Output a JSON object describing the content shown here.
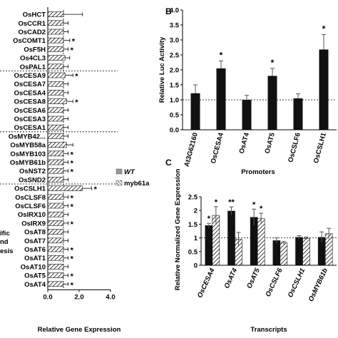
{
  "figure": {
    "background": "#ffffff",
    "bar_color": "#111111"
  },
  "chart_data": [
    {
      "panel": "A",
      "panel_label": "",
      "type": "bar",
      "orientation": "horizontal",
      "xlabel": "Relative Gene Expression",
      "xlim": [
        0,
        4
      ],
      "xticks": [
        "0.0",
        "2.0",
        "4.0"
      ],
      "reference_line": 1.0,
      "legend": {
        "placement": "right",
        "items": [
          "WT",
          "myb61a"
        ]
      },
      "side_labels": [
        "ific",
        "nd",
        "esis"
      ],
      "group_separators_after": [
        "OsPAL1",
        "OsCESA1",
        "OsSND2"
      ],
      "categories": [
        "OsHCT",
        "OsCCR1",
        "OsCAD2",
        "OsCOMT1",
        "OsF5H",
        "Os4CL3",
        "OsPAL1",
        "OsCESA9",
        "OsCESA7",
        "OsCESA4",
        "OsCESA8",
        "OsCESA6",
        "OsCESA3",
        "OsCESA1",
        "OsMYB42...",
        "OsMYB58a",
        "OsMYB103",
        "OsMYB61b",
        "OsNST2",
        "OsSND2",
        "OsCSLH1",
        "OsCLSF8",
        "OsCLSF6",
        "OsIRX10",
        "OsIRX9",
        "OsAT8",
        "OsAT7",
        "OsAT6",
        "OsAT1",
        "OsAT10",
        "OsAT5",
        "OsAT4"
      ],
      "series": [
        {
          "name": "myb61a",
          "pattern": "hatched",
          "values": [
            1.0,
            1.0,
            1.0,
            1.0,
            1.0,
            1.1,
            1.0,
            1.1,
            1.0,
            1.0,
            1.2,
            1.0,
            1.0,
            1.0,
            1.0,
            1.2,
            1.0,
            1.0,
            1.0,
            1.0,
            2.2,
            1.0,
            1.0,
            1.0,
            1.0,
            1.0,
            1.0,
            1.0,
            1.0,
            1.0,
            1.0,
            1.0
          ],
          "errors": [
            1.2,
            0.3,
            0.3,
            0.4,
            0.3,
            0.3,
            0.3,
            0.5,
            0.3,
            0.3,
            0.4,
            0.3,
            0.3,
            0.3,
            0.3,
            0.4,
            0.3,
            0.3,
            0.3,
            0.3,
            0.6,
            0.3,
            0.3,
            0.3,
            0.3,
            0.3,
            0.3,
            0.3,
            0.3,
            0.3,
            0.3,
            0.3
          ]
        }
      ],
      "significance": [
        "",
        "",
        "",
        "*",
        "*",
        "",
        "",
        "*",
        "",
        "",
        "*",
        "",
        "",
        "",
        "",
        "",
        "*",
        "*",
        "*",
        "",
        "*",
        "*",
        "*",
        "",
        "*",
        "",
        "",
        "*",
        "*",
        "",
        "*",
        "*"
      ]
    },
    {
      "panel": "B",
      "panel_label": "B",
      "type": "bar",
      "ylabel": "Relative Luc Activity",
      "xlabel": "Promoters",
      "ylim": [
        0,
        4
      ],
      "yticks": [
        "0.0",
        "0.5",
        "1.0",
        "1.5",
        "2.0",
        "2.5",
        "3.0",
        "3.5",
        "4.0"
      ],
      "reference_line": 1.0,
      "categories": [
        "At3G62160",
        "OsCESA4",
        "OsAT4",
        "OsAT5",
        "OsCSLF6",
        "OsCSLH1"
      ],
      "values": [
        1.22,
        2.05,
        1.0,
        1.8,
        1.05,
        2.68
      ],
      "errors": [
        0.28,
        0.25,
        0.15,
        0.25,
        0.15,
        0.5
      ],
      "significance": [
        "",
        "*",
        "",
        "*",
        "",
        "*"
      ]
    },
    {
      "panel": "C",
      "panel_label": "C",
      "type": "bar",
      "ylabel": "Relative Normalized Gene Expression",
      "xlabel": "Transcripts",
      "ylim": [
        0,
        2.5
      ],
      "yticks": [
        "0",
        "0.5",
        "1",
        "1.5",
        "2",
        "2.5"
      ],
      "reference_line": 1.0,
      "categories": [
        "OsCESA4",
        "OsAT4",
        "OsAT5",
        "OsCSLF6",
        "OsCSLH1",
        "OsMYB61b"
      ],
      "series": [
        {
          "name": "WT",
          "pattern": "solid",
          "values": [
            1.45,
            1.98,
            1.75,
            0.9,
            1.02,
            1.02
          ],
          "errors": [
            0.08,
            0.15,
            0.3,
            0.1,
            0.06,
            0.2
          ],
          "significance": [
            "*",
            "**",
            "*",
            "",
            "",
            ""
          ]
        },
        {
          "name": "myb61a",
          "pattern": "hatched",
          "values": [
            1.82,
            0.95,
            1.7,
            0.82,
            0.98,
            1.15
          ],
          "errors": [
            0.32,
            0.25,
            0.2,
            0.05,
            0.05,
            0.2
          ],
          "significance": [
            "*",
            "",
            "*",
            "",
            "",
            ""
          ]
        }
      ]
    }
  ]
}
